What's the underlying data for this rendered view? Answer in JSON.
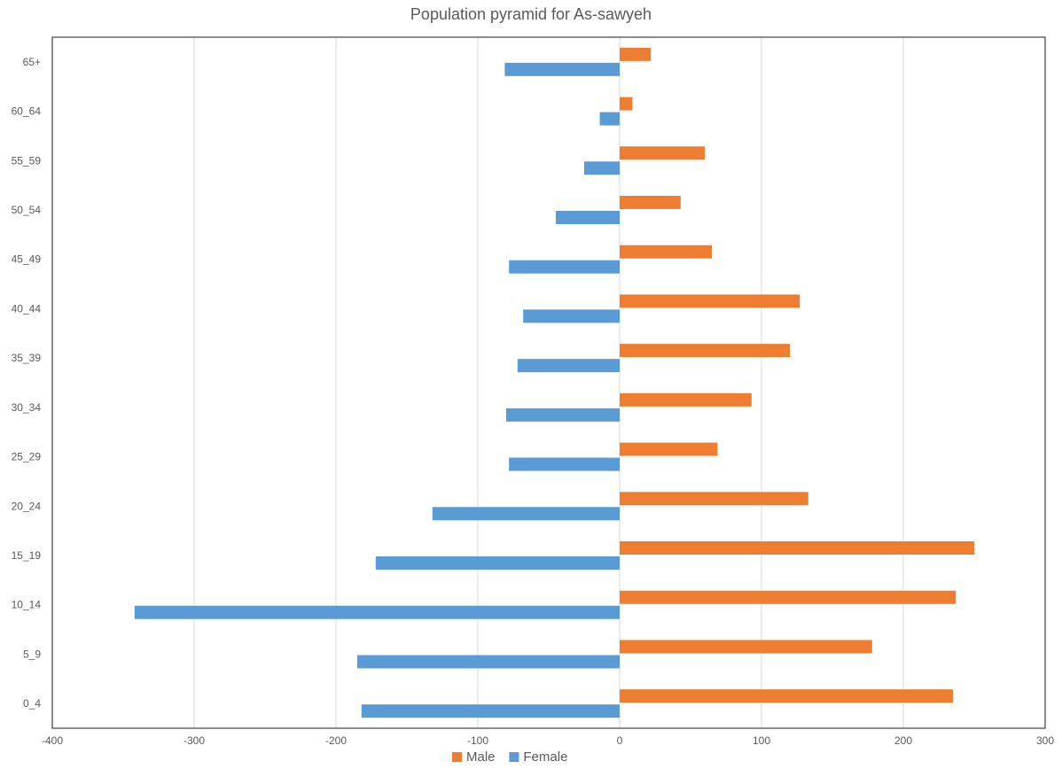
{
  "chart_data": {
    "type": "bar",
    "orientation": "horizontal",
    "title": "Population pyramid for As-sawyeh",
    "xlabel": "",
    "ylabel": "",
    "categories": [
      "65+",
      "60_64",
      "55_59",
      "50_54",
      "45_49",
      "40_44",
      "35_39",
      "30_34",
      "25_29",
      "20_24",
      "15_19",
      "10_14",
      "5_9",
      "0_4"
    ],
    "series": [
      {
        "name": "Male",
        "color": "#ED7D31",
        "values": [
          22,
          9,
          60,
          43,
          65,
          127,
          120,
          93,
          69,
          133,
          250,
          237,
          178,
          235
        ]
      },
      {
        "name": "Female",
        "color": "#5B9BD5",
        "values": [
          -81,
          -14,
          -25,
          -45,
          -78,
          -68,
          -72,
          -80,
          -78,
          -132,
          -172,
          -342,
          -185,
          -182
        ]
      }
    ],
    "xlim": [
      -400,
      300
    ],
    "xticks": [
      -400,
      -300,
      -200,
      -100,
      0,
      100,
      200,
      300
    ],
    "grid": true,
    "legend_position": "bottom"
  }
}
